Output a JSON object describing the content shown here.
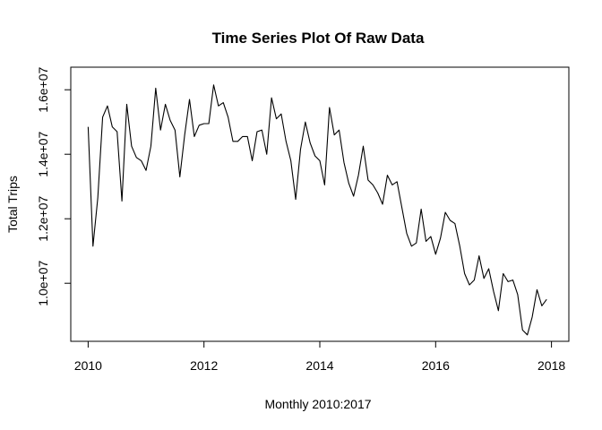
{
  "chart_data": {
    "type": "line",
    "title": "Time Series Plot Of Raw Data",
    "xlabel": "Monthly 2010:2017",
    "ylabel": "Total Trips",
    "xlim": [
      2009.7,
      2018.3
    ],
    "ylim": [
      8200000,
      16700000
    ],
    "x_ticks": [
      2010,
      2012,
      2014,
      2016,
      2018
    ],
    "x_tick_labels": [
      "2010",
      "2012",
      "2014",
      "2016",
      "2018"
    ],
    "y_ticks": [
      10000000,
      12000000,
      14000000,
      16000000
    ],
    "y_tick_labels": [
      "1.0e+07",
      "1.2e+07",
      "1.4e+07",
      "1.6e+07"
    ],
    "grid": false,
    "legend": "none",
    "series": [
      {
        "x_start": 2010,
        "x_step_months": 1,
        "values": [
          14850000,
          11150000,
          12650000,
          15150000,
          15500000,
          14850000,
          14700000,
          12550000,
          15550000,
          14250000,
          13900000,
          13800000,
          13500000,
          14250000,
          16050000,
          14750000,
          15550000,
          15050000,
          14750000,
          13300000,
          14600000,
          15700000,
          14550000,
          14900000,
          14950000,
          14950000,
          16150000,
          15500000,
          15600000,
          15150000,
          14400000,
          14400000,
          14550000,
          14550000,
          13800000,
          14700000,
          14750000,
          14000000,
          15750000,
          15100000,
          15250000,
          14400000,
          13800000,
          12600000,
          14150000,
          15000000,
          14350000,
          13950000,
          13800000,
          13050000,
          15450000,
          14600000,
          14750000,
          13750000,
          13100000,
          12700000,
          13350000,
          14250000,
          13200000,
          13050000,
          12800000,
          12450000,
          13350000,
          13050000,
          13150000,
          12350000,
          11550000,
          11150000,
          11250000,
          12300000,
          11300000,
          11450000,
          10900000,
          11400000,
          12200000,
          11950000,
          11850000,
          11150000,
          10300000,
          9950000,
          10100000,
          10850000,
          10150000,
          10450000,
          9750000,
          9150000,
          10300000,
          10050000,
          10100000,
          9650000,
          8550000,
          8400000,
          8950000,
          9800000,
          9300000,
          9500000
        ]
      }
    ]
  }
}
